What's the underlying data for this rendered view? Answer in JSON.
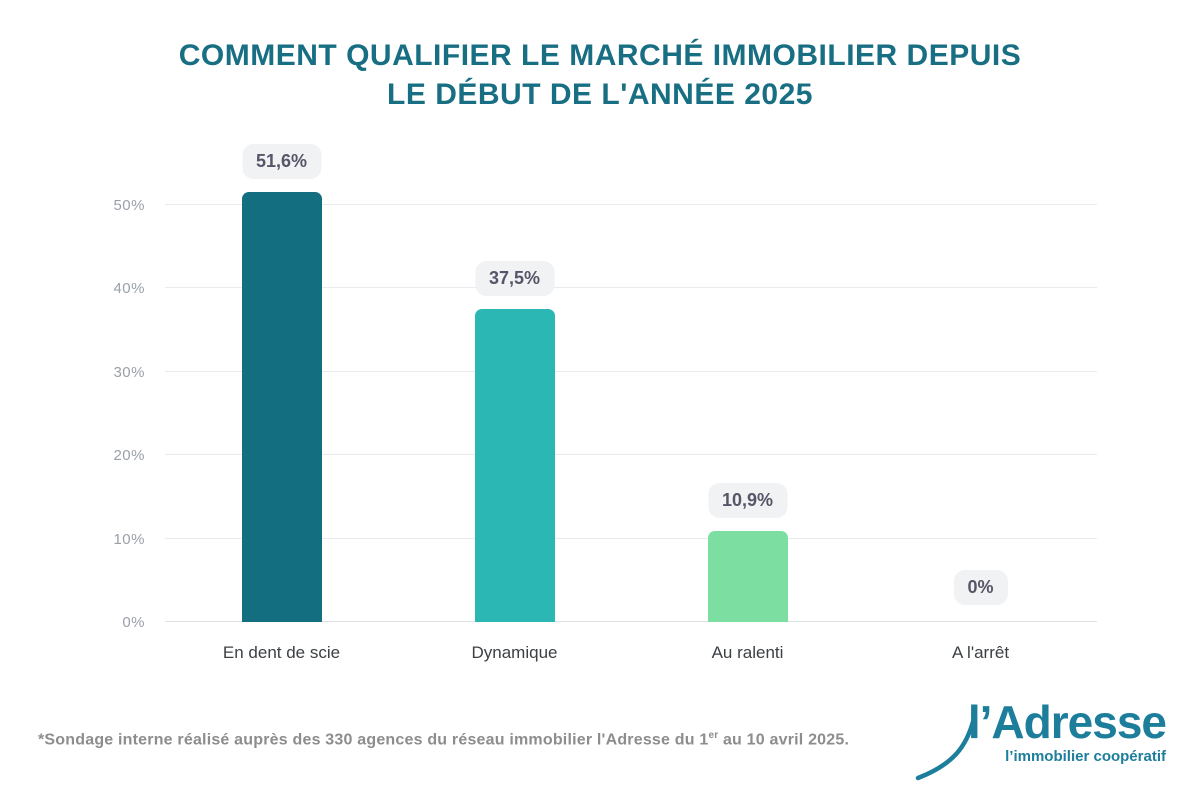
{
  "title": {
    "lines": [
      "COMMENT QUALIFIER LE MARCHÉ IMMOBILIER DEPUIS",
      "LE DÉBUT DE L'ANNÉE 2025"
    ],
    "color": "#186e82"
  },
  "chart_data": {
    "type": "bar",
    "title": "COMMENT QUALIFIER LE MARCHÉ IMMOBILIER DEPUIS LE DÉBUT DE L'ANNÉE 2025",
    "categories": [
      "En dent de scie",
      "Dynamique",
      "Au ralenti",
      "A l'arrêt"
    ],
    "values": [
      51.6,
      37.5,
      10.9,
      0
    ],
    "value_labels": [
      "51,6%",
      "37,5%",
      "10,9%",
      "0%"
    ],
    "bar_colors": [
      "#136f80",
      "#2bb7b3",
      "#7cdfa1",
      "#7cdfa1"
    ],
    "yticks": [
      0,
      10,
      20,
      30,
      40,
      50
    ],
    "ytick_labels": [
      "0%",
      "10%",
      "20%",
      "30%",
      "40%",
      "50%"
    ],
    "ylim": [
      0,
      50
    ],
    "grid": true,
    "legend": false,
    "xlabel": "",
    "ylabel": "",
    "badge_bg": "#f1f2f4",
    "badge_text_color": "#565668"
  },
  "footnote": {
    "prefix": "*Sondage interne réalisé auprès des 330 agences du réseau immobilier l'Adresse du 1",
    "sup": "er",
    "suffix": " au 10 avril 2025."
  },
  "logo": {
    "name": "l’Adresse",
    "tagline": "l’immobilier coopératif",
    "color": "#1d7e9c"
  }
}
